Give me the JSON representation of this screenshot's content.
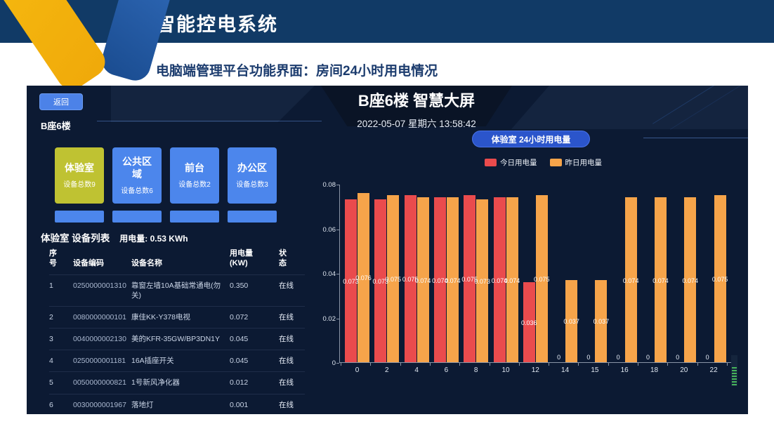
{
  "page": {
    "header_title": "智能控电系统",
    "subtitle": "电脑端管理平台功能界面：房间24小时用电情况"
  },
  "dashboard": {
    "back_button": "返回",
    "floor_label": "B座6楼",
    "screen_title": "B座6楼 智慧大屏",
    "datetime": "2022-05-07 星期六 13:58:42",
    "rooms": [
      {
        "name": "体验室",
        "count": "设备总数9",
        "selected": true
      },
      {
        "name": "公共区域",
        "count": "设备总数6",
        "selected": false
      },
      {
        "name": "前台",
        "count": "设备总数2",
        "selected": false
      },
      {
        "name": "办公区",
        "count": "设备总数3",
        "selected": false
      }
    ],
    "device_list": {
      "title": "体验室 设备列表",
      "usage_label": "用电量: 0.53 KWh",
      "columns": [
        "序\n号",
        "设备编码",
        "设备名称",
        "用电量\n(KW)",
        "状\n态"
      ],
      "rows": [
        [
          "1",
          "0250000001310",
          "靠窗左墙10A基础常通电(勿关)",
          "0.350",
          "在线"
        ],
        [
          "2",
          "0080000000101",
          "康佳KK-Y378电视",
          "0.072",
          "在线"
        ],
        [
          "3",
          "0040000002130",
          "美的KFR-35GW/BP3DN1Y",
          "0.045",
          "在线"
        ],
        [
          "4",
          "0250000001181",
          "16A插座开关",
          "0.045",
          "在线"
        ],
        [
          "5",
          "0050000000821",
          "1号新风净化器",
          "0.012",
          "在线"
        ],
        [
          "6",
          "0030000001967",
          "落地灯",
          "0.001",
          "在线"
        ]
      ]
    },
    "colors": {
      "accent_blue": "#4c86ec",
      "selected_olive": "#bfc232",
      "pill_blue": "#2b55cb",
      "today_red": "#ea4b4d",
      "yesterday_orange": "#f6a44a"
    }
  },
  "chart_data": {
    "type": "bar",
    "title": "体验室 24小时用电量",
    "categories": [
      "0",
      "2",
      "4",
      "6",
      "8",
      "10",
      "12",
      "14",
      "15",
      "16",
      "18",
      "20",
      "22"
    ],
    "series": [
      {
        "name": "今日用电量",
        "color": "#ea4b4d",
        "values": [
          0.073,
          0.073,
          0.075,
          0.074,
          0.075,
          0.074,
          0.036,
          0,
          0,
          0,
          0,
          0,
          0
        ]
      },
      {
        "name": "昨日用电量",
        "color": "#f6a44a",
        "values": [
          0.076,
          0.075,
          0.074,
          0.074,
          0.073,
          0.074,
          0.075,
          0.037,
          0.037,
          0.074,
          0.074,
          0.074,
          0.075
        ]
      }
    ],
    "xlabel": "",
    "ylabel": "",
    "ylim": [
      0,
      0.08
    ],
    "yticks": [
      0,
      0.02,
      0.04,
      0.06,
      0.08
    ],
    "legend_position": "top",
    "grid": false
  }
}
